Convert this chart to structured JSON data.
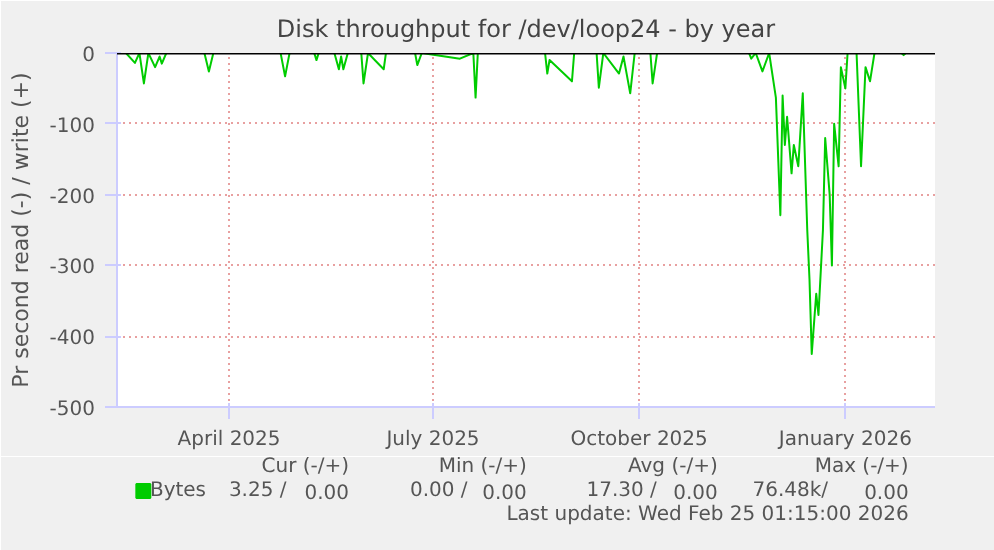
{
  "chart_data": {
    "type": "line",
    "title": "Disk throughput for /dev/loop24 - by year",
    "ylabel": "Pr second read (-) / write (+)",
    "x": [
      "2025-02-25",
      "2025-03-01",
      "2025-03-05",
      "2025-03-07",
      "2025-03-09",
      "2025-03-11",
      "2025-03-14",
      "2025-03-16",
      "2025-03-17",
      "2025-03-19",
      "2025-04-05",
      "2025-04-07",
      "2025-04-09",
      "2025-05-09",
      "2025-05-11",
      "2025-05-13",
      "2025-05-24",
      "2025-05-25",
      "2025-05-26",
      "2025-06-02",
      "2025-06-04",
      "2025-06-05",
      "2025-06-06",
      "2025-06-08",
      "2025-06-14",
      "2025-06-15",
      "2025-06-17",
      "2025-06-24",
      "2025-06-25",
      "2025-07-08",
      "2025-07-09",
      "2025-07-11",
      "2025-07-28",
      "2025-08-03",
      "2025-08-04",
      "2025-08-05",
      "2025-09-04",
      "2025-09-05",
      "2025-09-06",
      "2025-09-16",
      "2025-09-17",
      "2025-09-27",
      "2025-09-28",
      "2025-09-30",
      "2025-10-07",
      "2025-10-09",
      "2025-10-12",
      "2025-10-14",
      "2025-10-21",
      "2025-10-22",
      "2025-10-24",
      "2025-12-04",
      "2025-12-05",
      "2025-12-07",
      "2025-12-10",
      "2025-12-13",
      "2025-12-16",
      "2025-12-18",
      "2025-12-19",
      "2025-12-20",
      "2025-12-21",
      "2025-12-23",
      "2025-12-24",
      "2025-12-26",
      "2025-12-28",
      "2025-12-30",
      "2025-12-31",
      "2026-01-01",
      "2026-01-03",
      "2026-01-04",
      "2026-01-06",
      "2026-01-07",
      "2026-01-09",
      "2026-01-10",
      "2026-01-11",
      "2026-01-13",
      "2026-01-14",
      "2026-01-16",
      "2026-01-17",
      "2026-01-21",
      "2026-01-23",
      "2026-01-25",
      "2026-01-27",
      "2026-01-29",
      "2026-02-10",
      "2026-02-11",
      "2026-02-12",
      "2026-02-25"
    ],
    "series": [
      {
        "name": "Bytes",
        "color": "#00cc00",
        "values": [
          0,
          0,
          -14,
          0,
          -43,
          0,
          -20,
          -5,
          -15,
          0,
          0,
          -26,
          0,
          0,
          -33,
          0,
          0,
          -10,
          0,
          0,
          -23,
          -5,
          -23,
          0,
          0,
          -43,
          0,
          -23,
          0,
          0,
          -17,
          0,
          -8,
          0,
          -63,
          0,
          0,
          -29,
          -10,
          -40,
          0,
          0,
          -49,
          0,
          -29,
          -5,
          -57,
          0,
          0,
          -43,
          0,
          0,
          -8,
          0,
          -26,
          0,
          -63,
          -229,
          -60,
          -130,
          -90,
          -170,
          -130,
          -160,
          -57,
          -250,
          -320,
          -425,
          -340,
          -370,
          -250,
          -120,
          -200,
          -300,
          -100,
          -160,
          -20,
          -50,
          0,
          0,
          -160,
          -20,
          -40,
          0,
          0,
          -3,
          0,
          0
        ]
      }
    ],
    "xlim": [
      "2025-02-25",
      "2026-02-25"
    ],
    "xticks": [
      {
        "value": "2025-04-16",
        "label": "April 2025"
      },
      {
        "value": "2025-07-16",
        "label": "July 2025"
      },
      {
        "value": "2025-10-16",
        "label": "October 2025"
      },
      {
        "value": "2026-01-16",
        "label": "January 2026"
      }
    ],
    "ylim": [
      -500,
      0
    ],
    "yticks": [
      0,
      -100,
      -200,
      -300,
      -400,
      -500
    ],
    "ref_lines": [
      {
        "axis": "y",
        "value": 0,
        "color": "#000000"
      }
    ],
    "grid": true,
    "legend": "bottom",
    "annotations": [
      "Cur (-/+)",
      "Min (-/+)",
      "Avg (-/+)",
      "Max (-/+)",
      "3.25 /",
      "0.00",
      "0.00 /",
      "0.00",
      "17.30 /",
      "0.00",
      "76.48k/",
      "0.00",
      "Last update: Wed Feb 25 01:15:00 2026"
    ]
  }
}
